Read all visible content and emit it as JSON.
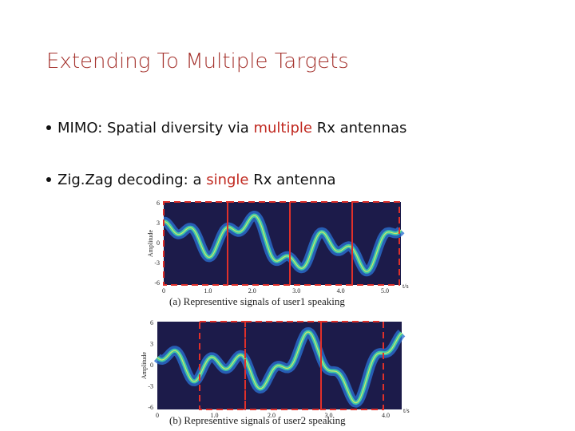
{
  "header": {
    "title": "Extending To Multiple Targets"
  },
  "bullets": [
    {
      "before": "MIMO: Spatial diversity via ",
      "highlight": "multiple",
      "after": " Rx antennas"
    },
    {
      "before": "Zig.Zag decoding: a ",
      "highlight": "single",
      "after": " Rx antenna"
    }
  ],
  "figures": [
    {
      "ylabel": "Amplitude",
      "yticks": [
        "6",
        "3",
        "0",
        "-3",
        "-6"
      ],
      "xticks": [
        "0",
        "1.0",
        "2.0",
        "3.0",
        "4.0",
        "5.0"
      ],
      "xunit": "t/s",
      "caption": "(a) Representive signals of user1 speaking"
    },
    {
      "ylabel": "Amplitude",
      "yticks": [
        "6",
        "3",
        "0",
        "-3",
        "-6"
      ],
      "xticks": [
        "0",
        "1.0",
        "2.0",
        "3.0",
        "4.0"
      ],
      "xunit": "t/s",
      "caption": "(b) Representive signals of user2 speaking"
    }
  ]
}
